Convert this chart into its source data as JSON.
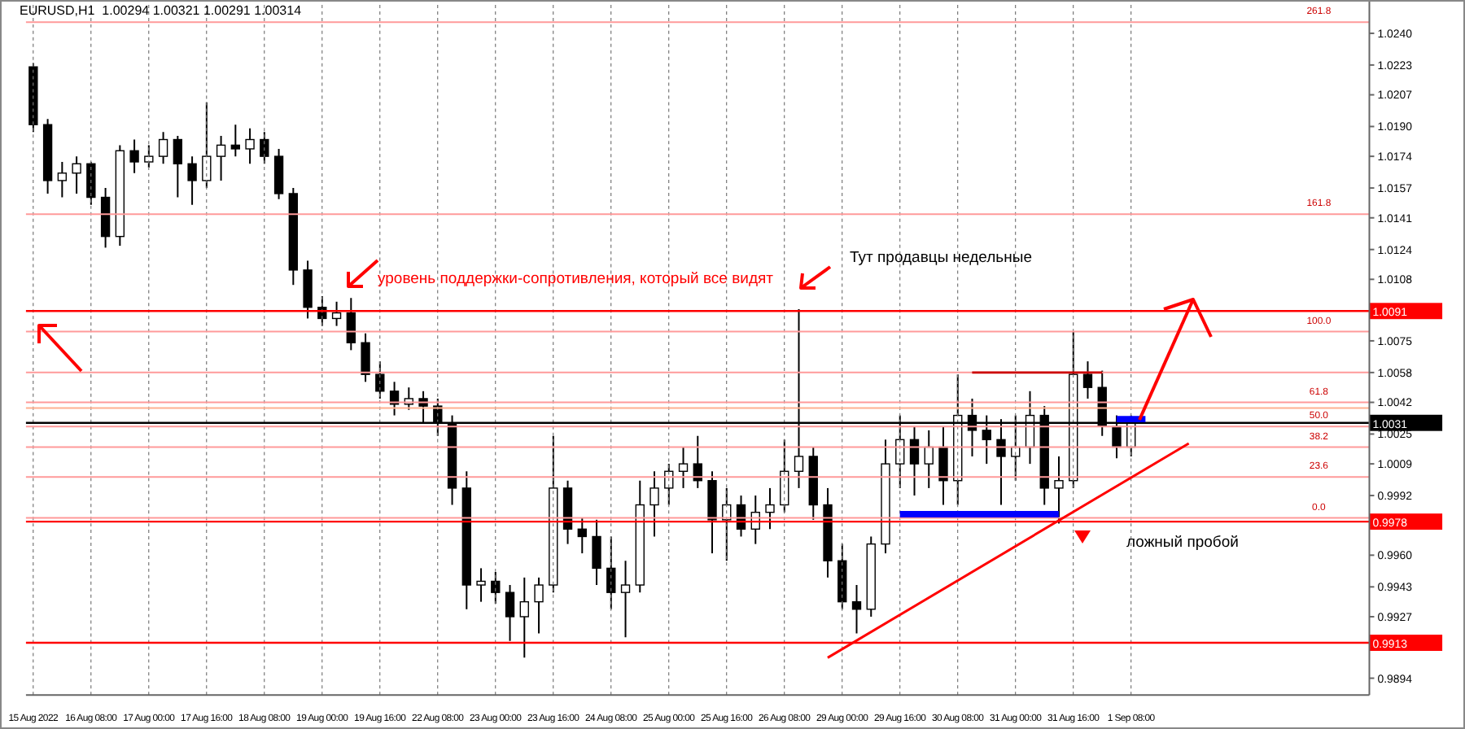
{
  "chart_data": {
    "type": "candlestick",
    "title": "EURUSD,H1  1.00294 1.00321 1.00291 1.00314",
    "categories": [
      "15 Aug 2022",
      null,
      null,
      null,
      "16 Aug 08:00",
      null,
      null,
      null,
      "17 Aug 00:00",
      null,
      null,
      null,
      "17 Aug 16:00",
      null,
      null,
      null,
      "18 Aug 08:00",
      null,
      null,
      null,
      "19 Aug 00:00",
      null,
      null,
      null,
      "19 Aug 16:00",
      null,
      null,
      null,
      "22 Aug 08:00",
      null,
      null,
      null,
      "23 Aug 00:00",
      null,
      null,
      null,
      "23 Aug 16:00",
      null,
      null,
      null,
      "24 Aug 08:00",
      null,
      null,
      null,
      "25 Aug 00:00",
      null,
      null,
      null,
      "25 Aug 16:00",
      null,
      null,
      null,
      "26 Aug 08:00",
      null,
      null,
      null,
      "29 Aug 00:00",
      null,
      null,
      null,
      "29 Aug 16:00",
      null,
      null,
      null,
      "30 Aug 08:00",
      null,
      null,
      null,
      "31 Aug 00:00",
      null,
      null,
      null,
      "31 Aug 16:00",
      null,
      null,
      null,
      "1 Sep 08:00",
      null,
      null,
      null,
      null,
      null,
      null,
      null,
      null,
      null,
      null,
      null,
      null,
      null,
      null,
      null,
      null
    ],
    "ohlc": [
      [
        1.0222,
        1.0224,
        1.0187,
        1.0191
      ],
      [
        1.0191,
        1.0194,
        1.0154,
        1.0161
      ],
      [
        1.0161,
        1.0171,
        1.0152,
        1.0165
      ],
      [
        1.0165,
        1.0174,
        1.0154,
        1.017
      ],
      [
        1.017,
        1.0171,
        1.0148,
        1.0152
      ],
      [
        1.0152,
        1.0157,
        1.0125,
        1.0131
      ],
      [
        1.0131,
        1.018,
        1.0126,
        1.0177
      ],
      [
        1.0177,
        1.0183,
        1.0165,
        1.0171
      ],
      [
        1.0171,
        1.018,
        1.0168,
        1.0174
      ],
      [
        1.0174,
        1.0187,
        1.017,
        1.0183
      ],
      [
        1.0183,
        1.0185,
        1.0152,
        1.017
      ],
      [
        1.017,
        1.0174,
        1.0148,
        1.0161
      ],
      [
        1.0161,
        1.0203,
        1.0157,
        1.0174
      ],
      [
        1.0174,
        1.0185,
        1.0161,
        1.018
      ],
      [
        1.018,
        1.0191,
        1.0174,
        1.0178
      ],
      [
        1.0178,
        1.0189,
        1.017,
        1.0183
      ],
      [
        1.0183,
        1.0187,
        1.017,
        1.0174
      ],
      [
        1.0174,
        1.0178,
        1.0151,
        1.0154
      ],
      [
        1.0154,
        1.0157,
        1.0105,
        1.0113
      ],
      [
        1.0113,
        1.0118,
        1.0087,
        1.0093
      ],
      [
        1.0093,
        1.0099,
        1.0083,
        1.0087
      ],
      [
        1.0087,
        1.0096,
        1.0083,
        1.009
      ],
      [
        1.009,
        1.0098,
        1.007,
        1.0074
      ],
      [
        1.0074,
        1.0079,
        1.0053,
        1.0057
      ],
      [
        1.0057,
        1.0064,
        1.0044,
        1.0048
      ],
      [
        1.0048,
        1.0053,
        1.0035,
        1.0041
      ],
      [
        1.0041,
        1.005,
        1.0038,
        1.0044
      ],
      [
        1.0044,
        1.0048,
        1.0031,
        1.004
      ],
      [
        1.004,
        1.0044,
        1.0024,
        1.0031
      ],
      [
        1.0031,
        1.0035,
        0.9987,
        0.9996
      ],
      [
        0.9996,
        1.0005,
        0.9931,
        0.9944
      ],
      [
        0.9944,
        0.9953,
        0.9935,
        0.9946
      ],
      [
        0.9946,
        0.9951,
        0.9934,
        0.994
      ],
      [
        0.994,
        0.9944,
        0.9914,
        0.9927
      ],
      [
        0.9927,
        0.9948,
        0.9905,
        0.9935
      ],
      [
        0.9935,
        0.9948,
        0.9918,
        0.9944
      ],
      [
        0.9944,
        1.0024,
        0.994,
        0.9996
      ],
      [
        0.9996,
        1.0,
        0.9966,
        0.9974
      ],
      [
        0.9974,
        0.998,
        0.9961,
        0.997
      ],
      [
        0.997,
        0.9979,
        0.9944,
        0.9953
      ],
      [
        0.9953,
        0.997,
        0.9931,
        0.994
      ],
      [
        0.994,
        0.9957,
        0.9916,
        0.9944
      ],
      [
        0.9944,
        1.0,
        0.994,
        0.9987
      ],
      [
        0.9987,
        1.0005,
        0.997,
        0.9996
      ],
      [
        0.9996,
        1.0009,
        0.9987,
        1.0005
      ],
      [
        1.0005,
        1.0018,
        0.9996,
        1.0009
      ],
      [
        1.0009,
        1.0024,
        0.9996,
        1.0
      ],
      [
        1.0,
        1.0005,
        0.9961,
        0.9979
      ],
      [
        0.9979,
        0.9996,
        0.9957,
        0.9987
      ],
      [
        0.9987,
        0.9992,
        0.997,
        0.9974
      ],
      [
        0.9974,
        0.9992,
        0.9966,
        0.9983
      ],
      [
        0.9983,
        0.9996,
        0.9974,
        0.9987
      ],
      [
        0.9987,
        1.0022,
        0.9983,
        1.0005
      ],
      [
        1.0005,
        1.0092,
        0.9996,
        1.0013
      ],
      [
        1.0013,
        1.0018,
        0.9979,
        0.9987
      ],
      [
        0.9987,
        0.9996,
        0.9948,
        0.9957
      ],
      [
        0.9957,
        0.9966,
        0.9931,
        0.9935
      ],
      [
        0.9935,
        0.9944,
        0.9918,
        0.9931
      ],
      [
        0.9931,
        0.997,
        0.9927,
        0.9966
      ],
      [
        0.9966,
        1.0022,
        0.9961,
        1.0009
      ],
      [
        1.0009,
        1.0035,
        0.9996,
        1.0022
      ],
      [
        1.0022,
        1.0029,
        0.9992,
        1.0009
      ],
      [
        1.0009,
        1.0027,
        0.9996,
        1.0018
      ],
      [
        1.0018,
        1.0029,
        0.9987,
        1.0
      ],
      [
        1.0,
        1.0057,
        0.9987,
        1.0035
      ],
      [
        1.0035,
        1.0044,
        1.0013,
        1.0027
      ],
      [
        1.0027,
        1.0035,
        1.0009,
        1.0022
      ],
      [
        1.0022,
        1.0033,
        0.9987,
        1.0013
      ],
      [
        1.0013,
        1.0035,
        1.0,
        1.0018
      ],
      [
        1.0018,
        1.0048,
        1.0009,
        1.0035
      ],
      [
        1.0035,
        1.004,
        0.9987,
        0.9996
      ],
      [
        0.9996,
        1.0013,
        0.9977,
        1.0
      ],
      [
        1.0,
        1.008,
        0.9996,
        1.0057
      ],
      [
        1.0057,
        1.0064,
        1.0044,
        1.005
      ],
      [
        1.005,
        1.0059,
        1.0024,
        1.0029
      ],
      [
        1.0029,
        1.0035,
        1.0012,
        1.0018
      ],
      [
        1.0018,
        1.0035,
        1.0013,
        1.0031
      ],
      null,
      null,
      null,
      null,
      null,
      null,
      null,
      null,
      null,
      null,
      null,
      null,
      null,
      null,
      null,
      null
    ],
    "series": [
      {
        "type": "line",
        "color": "#ff0000",
        "values": [
          null,
          null,
          null,
          null,
          null,
          null,
          null,
          null,
          null,
          null,
          null,
          null,
          null,
          null,
          null,
          null,
          null,
          null,
          null,
          null,
          null,
          null,
          null,
          null,
          null,
          null,
          null,
          null,
          null,
          null,
          null,
          null,
          null,
          null,
          null,
          null,
          null,
          null,
          null,
          null,
          null,
          null,
          null,
          null,
          null,
          null,
          null,
          null,
          null,
          null,
          null,
          null,
          null,
          null,
          null,
          0.9905,
          null,
          null,
          null,
          null,
          null,
          null,
          null,
          null,
          null,
          null,
          null,
          null,
          null,
          null,
          null,
          null,
          null,
          null,
          null,
          null,
          null,
          null,
          null,
          null,
          1.002,
          null,
          null,
          null,
          null,
          null,
          null,
          null,
          null,
          null,
          null,
          null,
          null
        ]
      },
      {
        "type": "line",
        "color": "#0000ff",
        "values": [
          null,
          null,
          null,
          null,
          null,
          null,
          null,
          null,
          null,
          null,
          null,
          null,
          null,
          null,
          null,
          null,
          null,
          null,
          null,
          null,
          null,
          null,
          null,
          null,
          null,
          null,
          null,
          null,
          null,
          null,
          null,
          null,
          null,
          null,
          null,
          null,
          null,
          null,
          null,
          null,
          null,
          null,
          null,
          null,
          null,
          null,
          null,
          null,
          null,
          null,
          null,
          null,
          null,
          null,
          null,
          null,
          null,
          null,
          null,
          null,
          0.9982,
          null,
          null,
          null,
          null,
          null,
          null,
          null,
          null,
          null,
          null,
          0.9982,
          null,
          null,
          null,
          null,
          null,
          null,
          null,
          null,
          null,
          null,
          null,
          null,
          null,
          null,
          null,
          null,
          null,
          null,
          null,
          null,
          null
        ]
      },
      {
        "type": "line",
        "color": "#0000ff",
        "values": [
          null,
          null,
          null,
          null,
          null,
          null,
          null,
          null,
          null,
          null,
          null,
          null,
          null,
          null,
          null,
          null,
          null,
          null,
          null,
          null,
          null,
          null,
          null,
          null,
          null,
          null,
          null,
          null,
          null,
          null,
          null,
          null,
          null,
          null,
          null,
          null,
          null,
          null,
          null,
          null,
          null,
          null,
          null,
          null,
          null,
          null,
          null,
          null,
          null,
          null,
          null,
          null,
          null,
          null,
          null,
          null,
          null,
          null,
          null,
          null,
          null,
          null,
          null,
          null,
          null,
          null,
          null,
          null,
          null,
          null,
          null,
          null,
          null,
          null,
          null,
          1.0033,
          null,
          1.0033,
          null,
          null,
          null,
          null,
          null,
          null,
          null,
          null,
          null,
          null,
          null,
          null,
          null,
          null,
          null
        ]
      },
      {
        "type": "line",
        "color": "#cc0000",
        "values": [
          null,
          null,
          null,
          null,
          null,
          null,
          null,
          null,
          null,
          null,
          null,
          null,
          null,
          null,
          null,
          null,
          null,
          null,
          null,
          null,
          null,
          null,
          null,
          null,
          null,
          null,
          null,
          null,
          null,
          null,
          null,
          null,
          null,
          null,
          null,
          null,
          null,
          null,
          null,
          null,
          null,
          null,
          null,
          null,
          null,
          null,
          null,
          null,
          null,
          null,
          null,
          null,
          null,
          null,
          null,
          null,
          null,
          null,
          null,
          null,
          null,
          null,
          null,
          null,
          null,
          1.0058,
          null,
          null,
          null,
          null,
          null,
          null,
          null,
          null,
          1.0058,
          null,
          null,
          null,
          null,
          null,
          null,
          null,
          null,
          null,
          null,
          null,
          null,
          null,
          null,
          null,
          null,
          null,
          null
        ]
      }
    ],
    "ylim": [
      0.9885,
      1.0257
    ],
    "yticks": [
      {
        "value": 1.024,
        "label": "1.0240"
      },
      1.0223,
      1.0207,
      {
        "value": 1.019,
        "label": "1.0190"
      },
      1.0174,
      1.0157,
      1.0141,
      1.0124,
      1.0108,
      1.0075,
      1.0058,
      1.0042,
      1.0025,
      1.0009,
      0.9992,
      {
        "value": 0.996,
        "label": "0.9960"
      },
      0.9943,
      0.9927,
      0.9894
    ],
    "grid": "x",
    "ref_lines": [
      {
        "axis": "y",
        "value": 1.0091,
        "label": "1.0091",
        "color": "#ff0000"
      },
      {
        "axis": "y",
        "value": 0.9978,
        "label": "0.9978",
        "color": "#ff0000"
      },
      {
        "axis": "y",
        "value": 0.9913,
        "label": "0.9913",
        "color": "#ff0000"
      },
      {
        "axis": "y",
        "value": 1.0039,
        "color": "#ffb090"
      },
      {
        "axis": "y",
        "value": 1.0031,
        "label": "1.0031",
        "color": "#000000"
      },
      {
        "axis": "y",
        "value": 1.0246,
        "color": "#ff9a9a"
      },
      {
        "axis": "y",
        "value": 1.0143,
        "color": "#ff9a9a"
      },
      {
        "axis": "y",
        "value": 1.008,
        "color": "#ff9a9a"
      },
      {
        "axis": "y",
        "value": 1.0058,
        "color": "#ff9a9a"
      },
      {
        "axis": "y",
        "value": 1.0042,
        "color": "#ff9a9a"
      },
      {
        "axis": "y",
        "value": 1.0029,
        "color": "#ff9a9a"
      },
      {
        "axis": "y",
        "value": 1.0018,
        "color": "#ff9a9a"
      },
      {
        "axis": "y",
        "value": 1.0002,
        "color": "#ff9a9a"
      },
      {
        "axis": "y",
        "value": 0.998,
        "color": "#ff9a9a"
      }
    ],
    "annotations": [
      "уровень поддержки-сопротивления, который все видят",
      "Тут продавцы недельные",
      "ложный пробой",
      {
        "text": "261.8",
        "y": 1.0246
      },
      {
        "text": "161.8",
        "y": 1.0143
      },
      {
        "text": "100.0",
        "y": 1.008
      },
      {
        "text": "61.8",
        "y": 1.0042
      },
      {
        "text": "50.0",
        "y": 1.0029
      },
      {
        "text": "38.2",
        "y": 1.0018
      },
      {
        "text": "23.6",
        "y": 1.0002
      },
      {
        "text": "0.0",
        "y": 0.998
      }
    ]
  }
}
